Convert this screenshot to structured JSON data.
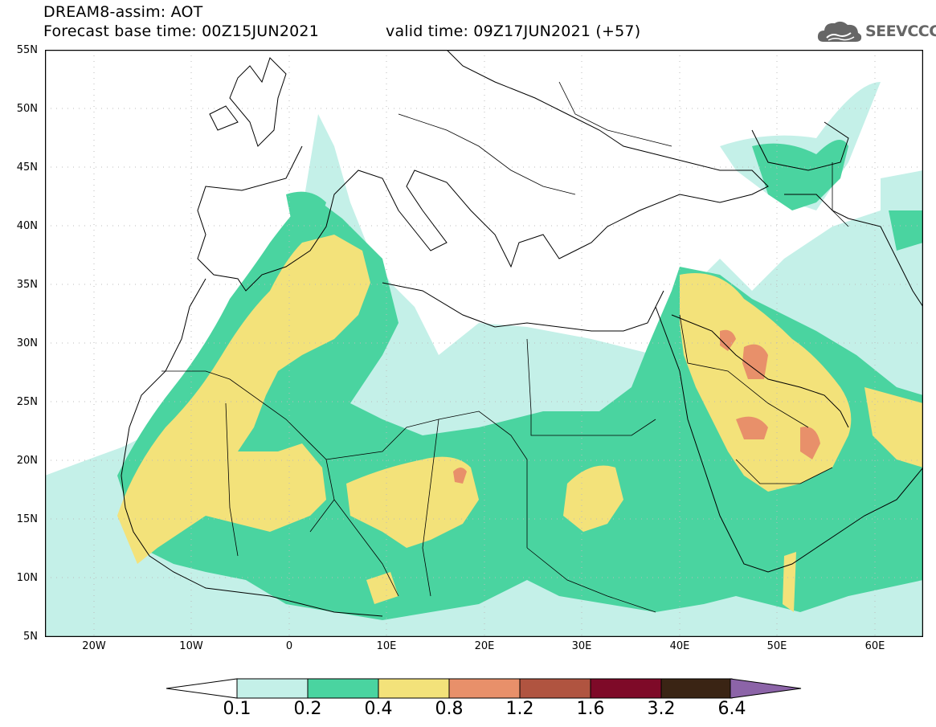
{
  "title": {
    "line1": "DREAM8-assim: AOT",
    "line2": "Forecast base time: 00Z15JUN2021",
    "valid": "valid time: 09Z17JUN2021 (+57)"
  },
  "logo": {
    "text": "SEEVCCC",
    "icon": "cloud-icon"
  },
  "map": {
    "lat_range": [
      5,
      55
    ],
    "lon_range": [
      -25,
      65
    ],
    "lat_labels": [
      "55N",
      "50N",
      "45N",
      "40N",
      "35N",
      "30N",
      "25N",
      "20N",
      "15N",
      "10N",
      "5N"
    ],
    "lon_labels": [
      "20W",
      "10W",
      "0",
      "10E",
      "20E",
      "30E",
      "40E",
      "50E",
      "60E"
    ]
  },
  "legend": {
    "labels": [
      "0.1",
      "0.2",
      "0.4",
      "0.8",
      "1.2",
      "1.6",
      "3.2",
      "6.4"
    ],
    "colors": [
      "#c4f0e8",
      "#4ad4a0",
      "#f3e27a",
      "#e8906a",
      "#b05440",
      "#7e0a28",
      "#3a2414",
      "#8c64a8"
    ]
  }
}
